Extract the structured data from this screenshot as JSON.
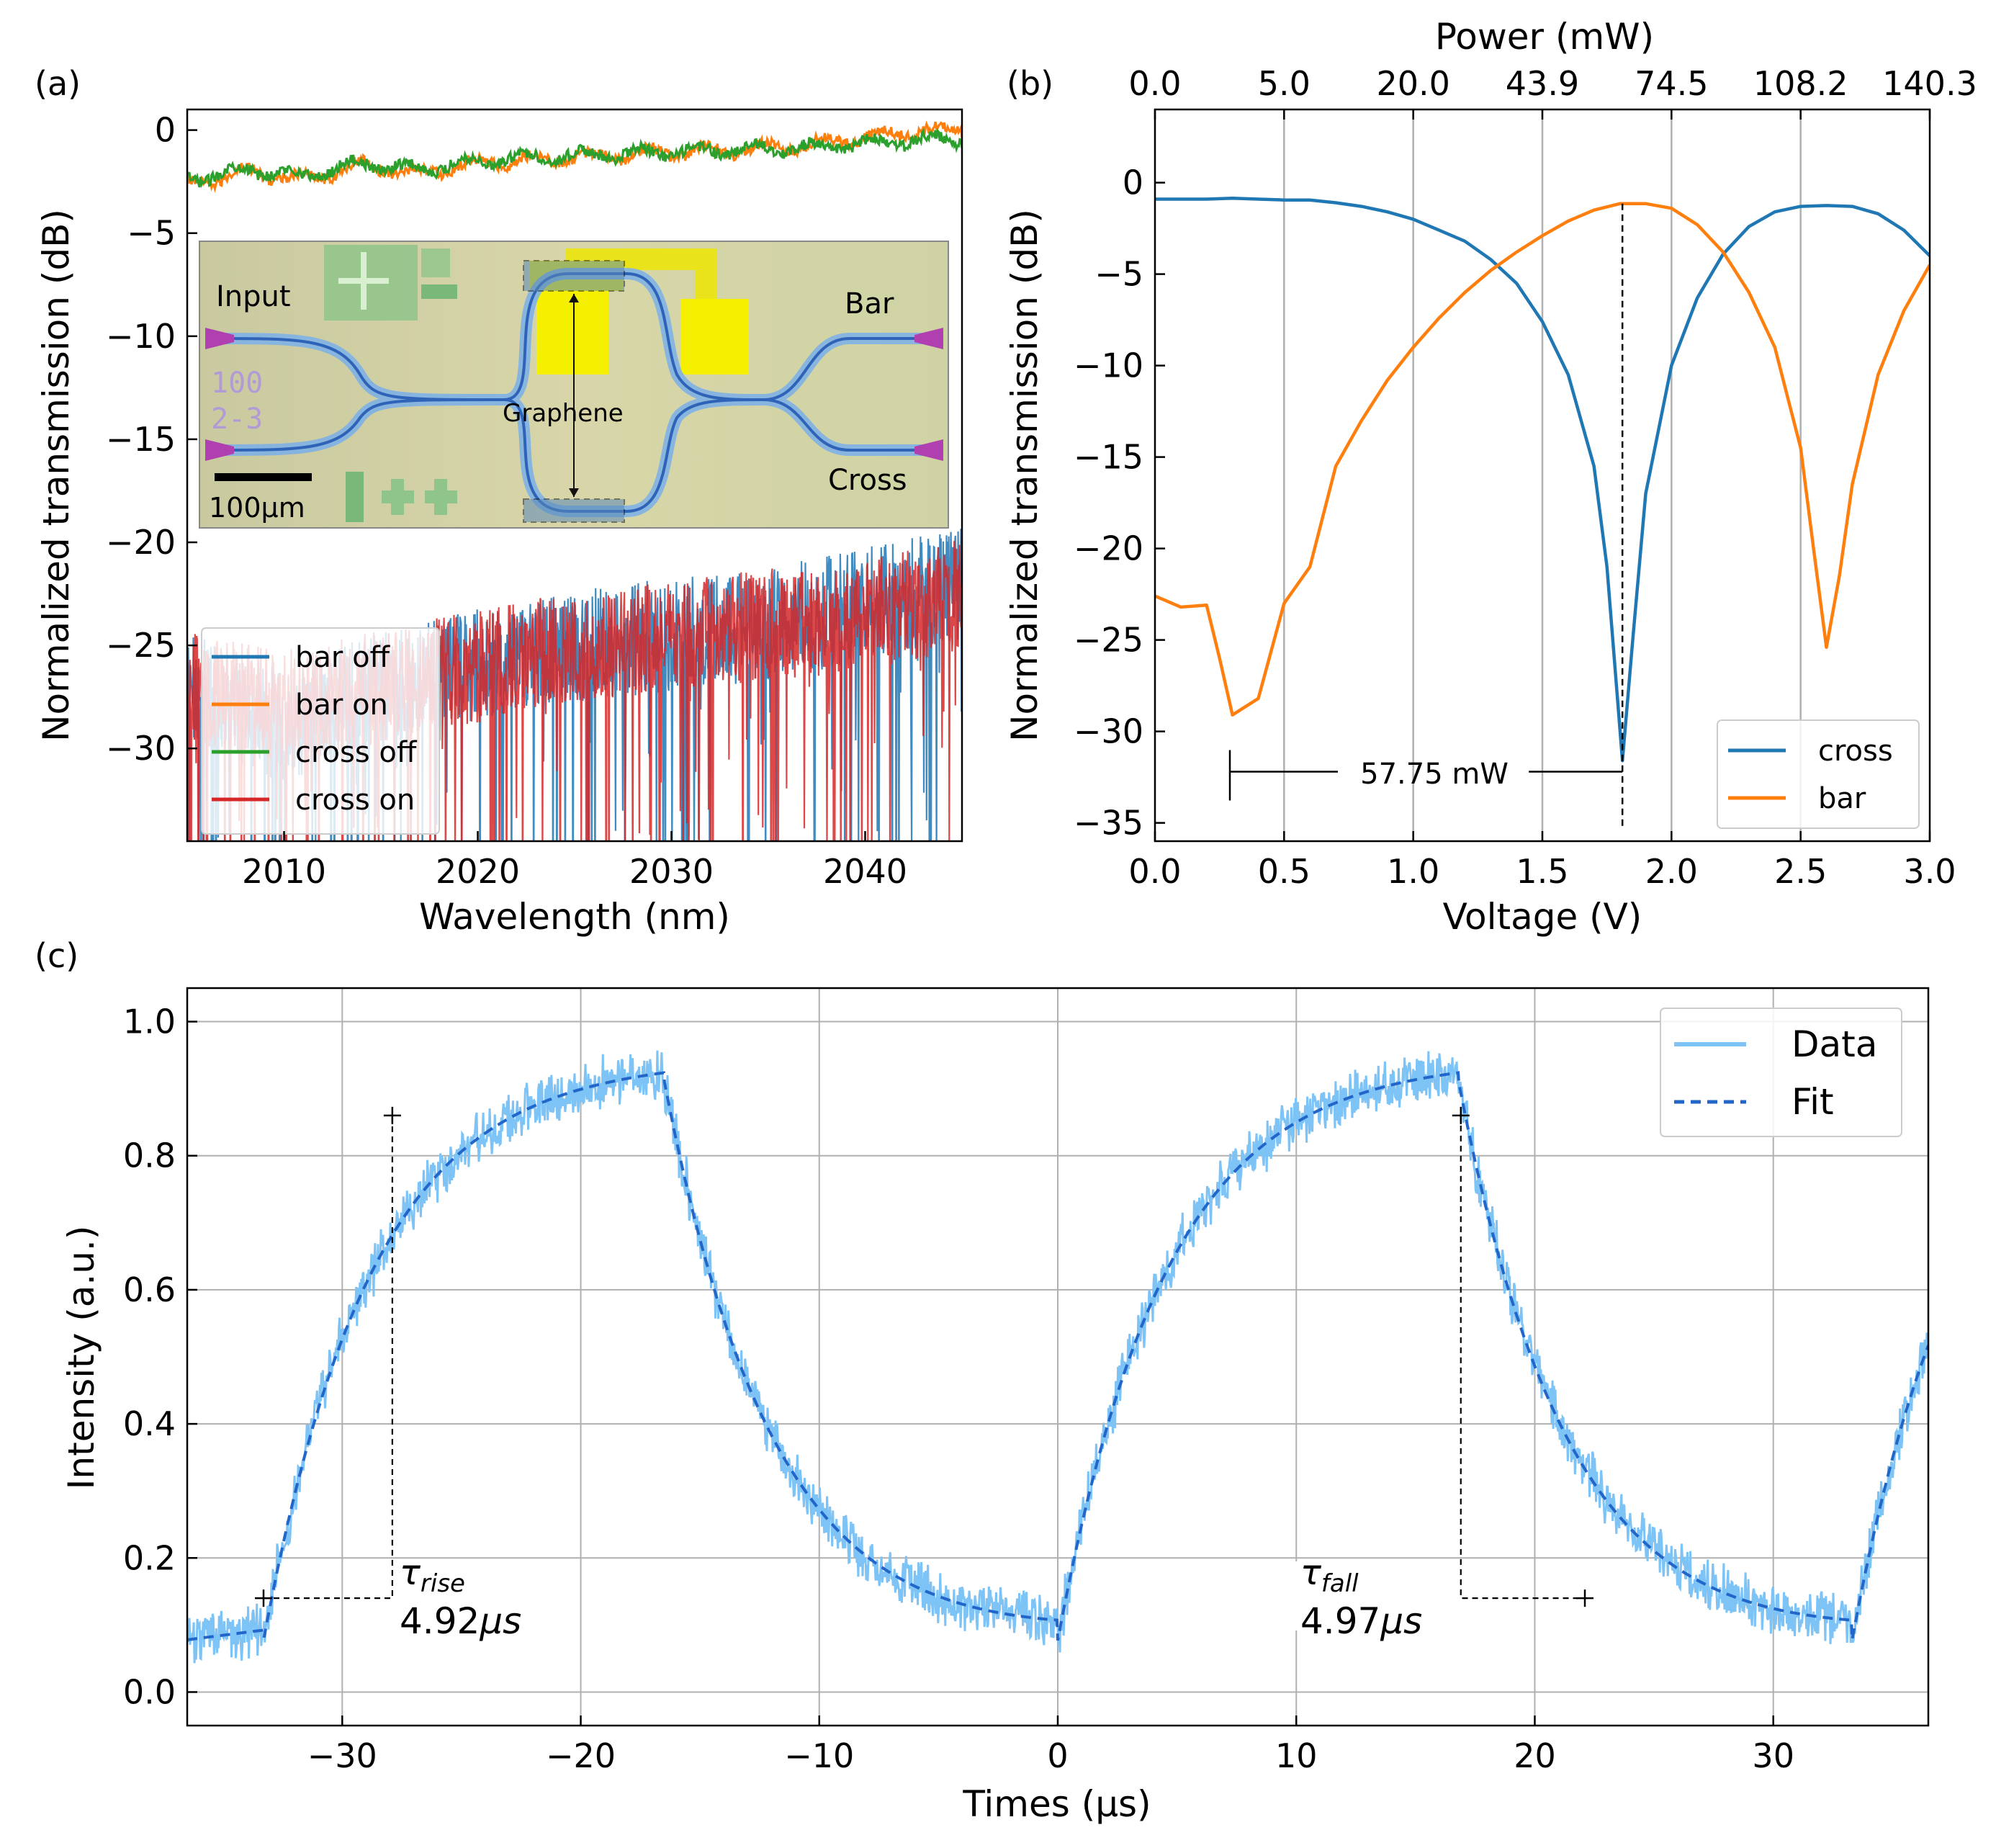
{
  "colors": {
    "blue": "#1f77b4",
    "orange": "#ff7f0e",
    "green": "#2ca02c",
    "red": "#d62728",
    "light_blue": "#7ec3f5",
    "fit_blue": "#2166c8"
  },
  "chart_data": [
    {
      "panel": "(a)",
      "type": "line",
      "xlabel": "Wavelength (nm)",
      "ylabel": "Normalized transmission (dB)",
      "xlim": [
        2005,
        2045
      ],
      "ylim": [
        -34.5,
        1
      ],
      "xticks": [
        2010,
        2020,
        2030,
        2040
      ],
      "yticks": [
        0,
        -5,
        -10,
        -15,
        -20,
        -25,
        -30
      ],
      "legend_position": "lower-left",
      "series": [
        {
          "name": "bar off",
          "color_key": "blue",
          "x": [
            2005,
            2010,
            2015,
            2020,
            2025,
            2030,
            2035,
            2040,
            2045
          ],
          "y": [
            -27,
            -29,
            -27,
            -26,
            -25,
            -24.5,
            -24,
            -23,
            -22
          ]
        },
        {
          "name": "bar on",
          "color_key": "orange",
          "x": [
            2005,
            2008,
            2011,
            2014,
            2017,
            2020,
            2023,
            2026,
            2029,
            2032,
            2035,
            2038,
            2041,
            2045
          ],
          "y": [
            -2.7,
            -2.0,
            -2.4,
            -1.7,
            -2.1,
            -1.6,
            -1.4,
            -1.3,
            -1.1,
            -1.0,
            -0.9,
            -0.6,
            -0.2,
            0.1
          ]
        },
        {
          "name": "cross off",
          "color_key": "green",
          "x": [
            2005,
            2008,
            2011,
            2014,
            2017,
            2020,
            2023,
            2026,
            2029,
            2032,
            2035,
            2038,
            2041,
            2045
          ],
          "y": [
            -2.4,
            -1.9,
            -2.2,
            -1.6,
            -1.9,
            -1.5,
            -1.3,
            -1.2,
            -1.1,
            -1.0,
            -0.9,
            -0.8,
            -0.6,
            -0.4
          ]
        },
        {
          "name": "cross on",
          "color_key": "red",
          "x": [
            2005,
            2010,
            2015,
            2020,
            2025,
            2030,
            2035,
            2040,
            2045
          ],
          "y": [
            -27,
            -28,
            -27,
            -26,
            -25,
            -24.5,
            -24,
            -23.5,
            -22.5
          ]
        }
      ],
      "inset": {
        "labels": [
          "Input",
          "Bar",
          "Cross",
          "Graphene",
          "100μm"
        ],
        "chip_marks": [
          "100",
          "2-3"
        ]
      }
    },
    {
      "panel": "(b)",
      "type": "line",
      "xlabel": "Voltage (V)",
      "top_xlabel": "Power (mW)",
      "ylabel": "Normalized transmission (dB)",
      "xlim": [
        0,
        3
      ],
      "ylim": [
        -36,
        4
      ],
      "xticks": [
        0.0,
        0.5,
        1.0,
        1.5,
        2.0,
        2.5,
        3.0
      ],
      "xtick_labels": [
        "0.0",
        "0.5",
        "1.0",
        "1.5",
        "2.0",
        "2.5",
        "3.0"
      ],
      "top_xticks": [
        0.0,
        0.5,
        1.0,
        1.5,
        2.0,
        2.5,
        3.0
      ],
      "top_xtick_labels": [
        "0.0",
        "5.0",
        "20.0",
        "43.9",
        "74.5",
        "108.2",
        "140.3"
      ],
      "yticks": [
        0,
        -5,
        -10,
        -15,
        -20,
        -25,
        -30,
        -35
      ],
      "legend_position": "lower-right",
      "vgrid": [
        0.5,
        1.0,
        1.5,
        2.0,
        2.5
      ],
      "marker_voltage": 1.81,
      "span": {
        "from_v": 0.29,
        "to_v": 1.81,
        "y": -32.2,
        "label": "57.75 mW"
      },
      "series": [
        {
          "name": "cross",
          "color_key": "blue",
          "x": [
            0,
            0.1,
            0.2,
            0.3,
            0.4,
            0.5,
            0.6,
            0.7,
            0.8,
            0.9,
            1.0,
            1.1,
            1.2,
            1.3,
            1.4,
            1.5,
            1.6,
            1.7,
            1.75,
            1.81,
            1.85,
            1.9,
            2.0,
            2.1,
            2.2,
            2.3,
            2.4,
            2.5,
            2.6,
            2.7,
            2.8,
            2.9,
            3.0
          ],
          "y": [
            -0.9,
            -0.9,
            -0.9,
            -0.85,
            -0.9,
            -0.95,
            -0.95,
            -1.1,
            -1.3,
            -1.6,
            -2.0,
            -2.6,
            -3.2,
            -4.2,
            -5.5,
            -7.6,
            -10.5,
            -15.5,
            -21,
            -31.6,
            -25,
            -17,
            -10,
            -6.3,
            -3.9,
            -2.4,
            -1.6,
            -1.3,
            -1.25,
            -1.3,
            -1.7,
            -2.6,
            -4.0
          ]
        },
        {
          "name": "bar",
          "color_key": "orange",
          "x": [
            0,
            0.1,
            0.2,
            0.25,
            0.3,
            0.4,
            0.5,
            0.6,
            0.7,
            0.8,
            0.9,
            1.0,
            1.1,
            1.2,
            1.3,
            1.4,
            1.5,
            1.6,
            1.7,
            1.8,
            1.9,
            2.0,
            2.1,
            2.2,
            2.3,
            2.4,
            2.5,
            2.55,
            2.6,
            2.65,
            2.7,
            2.8,
            2.9,
            3.0
          ],
          "y": [
            -22.6,
            -23.2,
            -23.1,
            -26,
            -29.1,
            -28.2,
            -23,
            -21,
            -15.5,
            -13,
            -10.8,
            -9,
            -7.4,
            -6,
            -4.8,
            -3.8,
            -2.9,
            -2.1,
            -1.5,
            -1.15,
            -1.15,
            -1.4,
            -2.3,
            -3.8,
            -6,
            -9,
            -14.5,
            -20,
            -25.4,
            -21.5,
            -16.5,
            -10.5,
            -7,
            -4.5
          ]
        }
      ]
    },
    {
      "panel": "(c)",
      "type": "line",
      "xlabel": "Times (μs)",
      "ylabel": "Intensity (a.u.)",
      "xlim": [
        -36.5,
        36.5
      ],
      "ylim": [
        -0.05,
        1.05
      ],
      "xticks": [
        -30,
        -20,
        -10,
        0,
        10,
        20,
        30
      ],
      "xtick_labels": [
        "−30",
        "−20",
        "−10",
        "0",
        "10",
        "20",
        "30"
      ],
      "yticks": [
        0.0,
        0.2,
        0.4,
        0.6,
        0.8,
        1.0
      ],
      "ytick_labels": [
        "0.0",
        "0.2",
        "0.4",
        "0.6",
        "0.8",
        "1.0"
      ],
      "legend_position": "top-right",
      "grid": true,
      "series": [
        {
          "name": "Data",
          "color_key": "light_blue",
          "style": "solid"
        },
        {
          "name": "Fit",
          "color_key": "fit_blue",
          "style": "dashed",
          "model": {
            "low": 0.065,
            "high": 0.945,
            "tau_rise_us": 4.92,
            "tau_fall_us": 4.97,
            "on_start_us": [
              -33.3,
              0
            ],
            "off_start_us": [
              -16.8,
              16.8
            ]
          }
        }
      ],
      "annotations": [
        {
          "symbol": "τ",
          "sub": "rise",
          "value": "4.92",
          "unit": "μs",
          "t1": -33.3,
          "t2": -27.9,
          "y1": 0.14,
          "y2": 0.86
        },
        {
          "symbol": "τ",
          "sub": "fall",
          "value": "4.97",
          "unit": "μs",
          "t1": 16.9,
          "t2": 22.1,
          "y1": 0.86,
          "y2": 0.14
        }
      ]
    }
  ],
  "panel_labels": [
    "(a)",
    "(b)",
    "(c)"
  ]
}
